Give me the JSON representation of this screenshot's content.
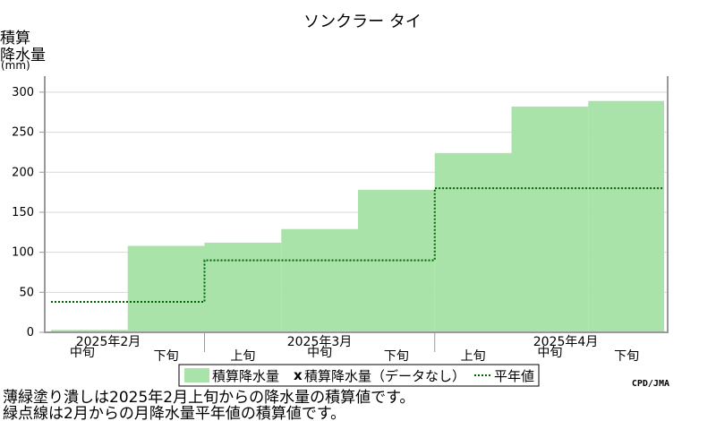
{
  "chart_data": {
    "type": "area",
    "title": "ソンクラー タイ",
    "ylabel": [
      "積算",
      "降水量"
    ],
    "yunit": "(mm)",
    "ylim": [
      0,
      320
    ],
    "yticks": [
      0,
      50,
      100,
      150,
      200,
      250,
      300
    ],
    "grid": true,
    "periods": [
      "2025年2月中旬",
      "2025年2月下旬",
      "2025年3月上旬",
      "2025年3月中旬",
      "2025年3月下旬",
      "2025年4月上旬",
      "2025年4月中旬",
      "2025年4月下旬"
    ],
    "month_labels": [
      "2025年2月",
      "2025年3月",
      "2025年4月"
    ],
    "dekad_labels": [
      "中旬",
      "下旬",
      "上旬",
      "中旬",
      "下旬",
      "上旬",
      "中旬",
      "下旬"
    ],
    "series": [
      {
        "name": "積算降水量",
        "style": "filled-step",
        "color": "#aae3aa",
        "values": [
          3,
          108,
          112,
          129,
          178,
          224,
          282,
          289
        ]
      },
      {
        "name": "積算降水量（データなし）",
        "style": "marker",
        "marker": "x",
        "values": []
      },
      {
        "name": "平年値",
        "style": "dotted-step",
        "color": "#006600",
        "values": [
          38,
          38,
          90,
          90,
          90,
          180,
          180,
          180
        ]
      }
    ],
    "legend_position": "bottom"
  },
  "notes": [
    "薄緑塗り潰しは2025年2月上旬からの降水量の積算値です。",
    "緑点線は2月からの月降水量平年値の積算値です。"
  ],
  "credit": "CPD/JMA"
}
